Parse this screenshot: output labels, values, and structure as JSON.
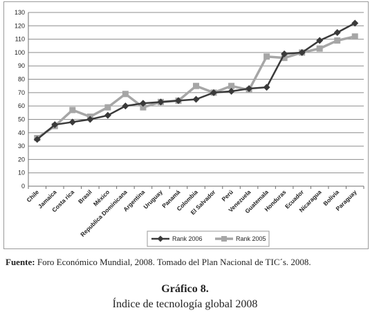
{
  "chart_data": {
    "type": "line",
    "categories": [
      "Chile",
      "Jamaica",
      "Costa rica",
      "Brasil",
      "México",
      "Republica Dominicana",
      "Argentina",
      "Uruguay",
      "Panamá",
      "Colombia",
      "El Salvador",
      "Perú",
      "Venezuela",
      "Guatemala",
      "Honduras",
      "Ecuador",
      "Nicaragua",
      "Bolivia",
      "Paraguay"
    ],
    "series": [
      {
        "name": "Rank 2006",
        "color": "#3a3a3a",
        "marker": "diamond",
        "values": [
          35,
          46,
          48,
          50,
          53,
          60,
          62,
          63,
          64,
          65,
          70,
          71,
          73,
          74,
          99,
          100,
          109,
          115,
          122
        ]
      },
      {
        "name": "Rank 2005",
        "color": "#a6a6a6",
        "marker": "square",
        "values": [
          36,
          45,
          57,
          52,
          59,
          69,
          59,
          63,
          64,
          75,
          70,
          75,
          72,
          97,
          96,
          100,
          103,
          109,
          112
        ]
      }
    ],
    "ylim": [
      0,
      130
    ],
    "yticks": [
      0,
      10,
      20,
      30,
      40,
      50,
      60,
      70,
      80,
      90,
      100,
      110,
      120,
      130
    ],
    "grid": true,
    "legend_position": "bottom"
  },
  "source": {
    "label": "Fuente:",
    "text": " Foro Económico Mundial, 2008. Tomado del Plan Nacional de TIC´s. 2008."
  },
  "caption": {
    "title": "Gráfico 8.",
    "subtitle": "Índice de tecnología global 2008"
  }
}
